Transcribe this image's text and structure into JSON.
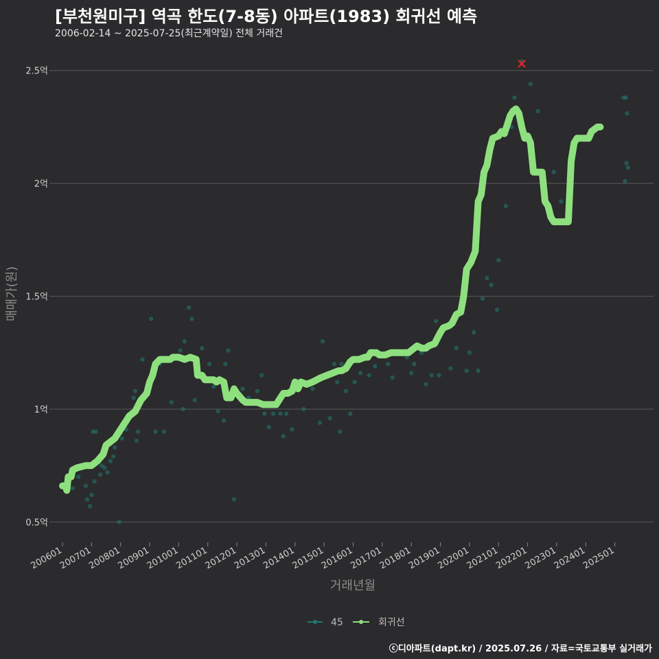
{
  "title": "[부천원미구] 역곡 한도(7-8동) 아파트(1983) 회귀선 예측",
  "subtitle": "2006-02-14 ~ 2025-07-25(최근계약일) 전체 거래건",
  "caption": "ⓒ디아파트(dapt.kr) / 2025.07.26 / 자료=국토교통부 실거래가",
  "colors": {
    "background": "#2b2a2c",
    "scatter": "#1f7a72",
    "line": "#8ee07f",
    "marker": "#d62728",
    "grid": "#5a5a5a"
  },
  "chart_data": {
    "type": "line",
    "xlabel": "거래년월",
    "ylabel": "매매가(원)",
    "xlim": [
      2005.67,
      2026.33
    ],
    "ylim": [
      0.41,
      2.63
    ],
    "x_ticks": [
      2006,
      2007,
      2008,
      2009,
      2010,
      2011,
      2012,
      2013,
      2014,
      2015,
      2016,
      2017,
      2018,
      2019,
      2020,
      2021,
      2022,
      2023,
      2024,
      2025
    ],
    "x_tick_labels": [
      "200601",
      "200701",
      "200801",
      "200901",
      "201001",
      "201101",
      "201201",
      "201301",
      "201401",
      "201501",
      "201601",
      "201701",
      "201801",
      "201901",
      "202001",
      "202101",
      "202201",
      "202301",
      "202401",
      "202501"
    ],
    "y_ticks": [
      0.5,
      1.0,
      1.5,
      2.0,
      2.5
    ],
    "y_tick_labels": [
      "0.5억",
      "1억",
      "1.5억",
      "2억",
      "2.5억"
    ],
    "legend": {
      "position": "bottom",
      "items": [
        "45",
        "회귀선"
      ]
    },
    "series": [
      {
        "name": "45",
        "kind": "scatter",
        "points": [
          [
            2006.15,
            0.66
          ],
          [
            2006.35,
            0.65
          ],
          [
            2006.55,
            0.7
          ],
          [
            2006.8,
            0.66
          ],
          [
            2006.85,
            0.6
          ],
          [
            2006.95,
            0.57
          ],
          [
            2007.0,
            0.62
          ],
          [
            2007.05,
            0.9
          ],
          [
            2007.15,
            0.9
          ],
          [
            2007.1,
            0.68
          ],
          [
            2007.3,
            0.71
          ],
          [
            2007.35,
            0.75
          ],
          [
            2007.45,
            0.74
          ],
          [
            2007.55,
            0.72
          ],
          [
            2007.65,
            0.77
          ],
          [
            2007.75,
            0.79
          ],
          [
            2007.8,
            0.83
          ],
          [
            2007.95,
            0.5
          ],
          [
            2008.05,
            0.87
          ],
          [
            2008.2,
            0.91
          ],
          [
            2008.3,
            0.96
          ],
          [
            2008.45,
            1.05
          ],
          [
            2008.5,
            1.08
          ],
          [
            2008.55,
            0.86
          ],
          [
            2008.6,
            0.9
          ],
          [
            2008.75,
            1.22
          ],
          [
            2009.05,
            1.4
          ],
          [
            2009.2,
            0.9
          ],
          [
            2009.35,
            1.2
          ],
          [
            2009.5,
            0.9
          ],
          [
            2009.75,
            1.03
          ],
          [
            2010.05,
            1.26
          ],
          [
            2010.15,
            1.0
          ],
          [
            2010.2,
            1.3
          ],
          [
            2010.35,
            1.45
          ],
          [
            2010.45,
            1.4
          ],
          [
            2010.55,
            1.04
          ],
          [
            2010.6,
            1.21
          ],
          [
            2010.7,
            1.15
          ],
          [
            2010.8,
            1.27
          ],
          [
            2011.05,
            1.2
          ],
          [
            2011.2,
            1.1
          ],
          [
            2011.35,
            0.99
          ],
          [
            2011.55,
            0.95
          ],
          [
            2011.6,
            1.2
          ],
          [
            2011.7,
            1.26
          ],
          [
            2011.9,
            0.6
          ],
          [
            2012.2,
            1.09
          ],
          [
            2012.4,
            1.05
          ],
          [
            2012.7,
            1.08
          ],
          [
            2012.85,
            1.15
          ],
          [
            2012.95,
            0.98
          ],
          [
            2013.1,
            0.92
          ],
          [
            2013.25,
            0.98
          ],
          [
            2013.4,
            1.02
          ],
          [
            2013.5,
            0.98
          ],
          [
            2013.6,
            0.88
          ],
          [
            2013.7,
            0.98
          ],
          [
            2013.9,
            0.91
          ],
          [
            2014.3,
            1.0
          ],
          [
            2014.6,
            1.09
          ],
          [
            2014.85,
            0.94
          ],
          [
            2014.95,
            1.3
          ],
          [
            2015.2,
            0.96
          ],
          [
            2015.35,
            1.2
          ],
          [
            2015.45,
            1.12
          ],
          [
            2015.55,
            0.9
          ],
          [
            2015.6,
            1.2
          ],
          [
            2015.75,
            1.08
          ],
          [
            2015.9,
            0.98
          ],
          [
            2016.05,
            1.12
          ],
          [
            2016.25,
            1.16
          ],
          [
            2016.4,
            1.23
          ],
          [
            2016.55,
            1.15
          ],
          [
            2016.75,
            1.19
          ],
          [
            2016.9,
            1.25
          ],
          [
            2017.2,
            1.2
          ],
          [
            2017.35,
            1.14
          ],
          [
            2017.55,
            1.25
          ],
          [
            2017.85,
            1.23
          ],
          [
            2018.0,
            1.16
          ],
          [
            2018.1,
            1.2
          ],
          [
            2018.35,
            1.25
          ],
          [
            2018.5,
            1.11
          ],
          [
            2018.7,
            1.15
          ],
          [
            2018.85,
            1.39
          ],
          [
            2018.95,
            1.15
          ],
          [
            2019.35,
            1.18
          ],
          [
            2019.55,
            1.27
          ],
          [
            2019.8,
            1.55
          ],
          [
            2019.9,
            1.17
          ],
          [
            2020.0,
            1.25
          ],
          [
            2020.15,
            1.34
          ],
          [
            2020.3,
            1.17
          ],
          [
            2020.45,
            1.49
          ],
          [
            2020.6,
            1.58
          ],
          [
            2020.75,
            1.55
          ],
          [
            2020.95,
            1.44
          ],
          [
            2021.0,
            1.66
          ],
          [
            2021.25,
            1.9
          ],
          [
            2021.45,
            2.25
          ],
          [
            2021.55,
            2.38
          ],
          [
            2021.8,
            2.54
          ],
          [
            2021.9,
            2.21
          ],
          [
            2022.0,
            2.2
          ],
          [
            2022.1,
            2.44
          ],
          [
            2022.35,
            2.32
          ],
          [
            2022.55,
            2.0
          ],
          [
            2022.7,
            1.9
          ],
          [
            2022.9,
            2.05
          ],
          [
            2023.15,
            1.92
          ],
          [
            2025.3,
            2.38
          ],
          [
            2025.38,
            2.38
          ],
          [
            2025.4,
            2.09
          ],
          [
            2025.42,
            2.31
          ],
          [
            2025.45,
            2.07
          ],
          [
            2025.35,
            2.01
          ]
        ]
      },
      {
        "name": "회귀선",
        "kind": "line",
        "points": [
          [
            2006.0,
            0.66
          ],
          [
            2006.1,
            0.66
          ],
          [
            2006.15,
            0.64
          ],
          [
            2006.2,
            0.7
          ],
          [
            2006.3,
            0.7
          ],
          [
            2006.35,
            0.73
          ],
          [
            2006.5,
            0.74
          ],
          [
            2006.8,
            0.75
          ],
          [
            2007.0,
            0.75
          ],
          [
            2007.2,
            0.77
          ],
          [
            2007.4,
            0.8
          ],
          [
            2007.5,
            0.84
          ],
          [
            2007.6,
            0.85
          ],
          [
            2007.8,
            0.87
          ],
          [
            2008.0,
            0.91
          ],
          [
            2008.2,
            0.95
          ],
          [
            2008.3,
            0.97
          ],
          [
            2008.5,
            0.99
          ],
          [
            2008.7,
            1.04
          ],
          [
            2008.9,
            1.07
          ],
          [
            2009.0,
            1.12
          ],
          [
            2009.1,
            1.15
          ],
          [
            2009.2,
            1.2
          ],
          [
            2009.35,
            1.22
          ],
          [
            2009.5,
            1.22
          ],
          [
            2009.7,
            1.22
          ],
          [
            2009.8,
            1.23
          ],
          [
            2010.0,
            1.23
          ],
          [
            2010.2,
            1.22
          ],
          [
            2010.4,
            1.23
          ],
          [
            2010.6,
            1.22
          ],
          [
            2010.65,
            1.15
          ],
          [
            2010.8,
            1.15
          ],
          [
            2010.9,
            1.13
          ],
          [
            2011.0,
            1.13
          ],
          [
            2011.2,
            1.13
          ],
          [
            2011.3,
            1.12
          ],
          [
            2011.4,
            1.13
          ],
          [
            2011.55,
            1.12
          ],
          [
            2011.65,
            1.05
          ],
          [
            2011.8,
            1.05
          ],
          [
            2011.9,
            1.09
          ],
          [
            2012.0,
            1.07
          ],
          [
            2012.2,
            1.04
          ],
          [
            2012.3,
            1.03
          ],
          [
            2012.5,
            1.03
          ],
          [
            2012.7,
            1.03
          ],
          [
            2012.9,
            1.02
          ],
          [
            2013.1,
            1.02
          ],
          [
            2013.2,
            1.02
          ],
          [
            2013.35,
            1.02
          ],
          [
            2013.5,
            1.05
          ],
          [
            2013.6,
            1.07
          ],
          [
            2013.75,
            1.07
          ],
          [
            2013.9,
            1.08
          ],
          [
            2014.0,
            1.12
          ],
          [
            2014.1,
            1.09
          ],
          [
            2014.2,
            1.12
          ],
          [
            2014.4,
            1.11
          ],
          [
            2014.6,
            1.12
          ],
          [
            2014.75,
            1.13
          ],
          [
            2014.9,
            1.14
          ],
          [
            2015.1,
            1.15
          ],
          [
            2015.3,
            1.16
          ],
          [
            2015.5,
            1.17
          ],
          [
            2015.6,
            1.17
          ],
          [
            2015.75,
            1.18
          ],
          [
            2015.9,
            1.21
          ],
          [
            2016.0,
            1.22
          ],
          [
            2016.2,
            1.22
          ],
          [
            2016.4,
            1.23
          ],
          [
            2016.5,
            1.23
          ],
          [
            2016.6,
            1.25
          ],
          [
            2016.8,
            1.25
          ],
          [
            2016.9,
            1.24
          ],
          [
            2017.1,
            1.24
          ],
          [
            2017.3,
            1.25
          ],
          [
            2017.5,
            1.25
          ],
          [
            2017.7,
            1.25
          ],
          [
            2017.9,
            1.25
          ],
          [
            2018.0,
            1.26
          ],
          [
            2018.1,
            1.27
          ],
          [
            2018.2,
            1.28
          ],
          [
            2018.35,
            1.27
          ],
          [
            2018.5,
            1.27
          ],
          [
            2018.6,
            1.28
          ],
          [
            2018.8,
            1.29
          ],
          [
            2019.0,
            1.34
          ],
          [
            2019.1,
            1.36
          ],
          [
            2019.3,
            1.37
          ],
          [
            2019.4,
            1.38
          ],
          [
            2019.55,
            1.42
          ],
          [
            2019.7,
            1.43
          ],
          [
            2019.8,
            1.5
          ],
          [
            2019.9,
            1.62
          ],
          [
            2020.05,
            1.65
          ],
          [
            2020.2,
            1.7
          ],
          [
            2020.3,
            1.92
          ],
          [
            2020.4,
            1.95
          ],
          [
            2020.5,
            2.05
          ],
          [
            2020.6,
            2.08
          ],
          [
            2020.7,
            2.15
          ],
          [
            2020.8,
            2.2
          ],
          [
            2021.0,
            2.21
          ],
          [
            2021.1,
            2.23
          ],
          [
            2021.2,
            2.22
          ],
          [
            2021.3,
            2.26
          ],
          [
            2021.4,
            2.3
          ],
          [
            2021.5,
            2.32
          ],
          [
            2021.6,
            2.33
          ],
          [
            2021.7,
            2.31
          ],
          [
            2021.8,
            2.25
          ],
          [
            2021.9,
            2.2
          ],
          [
            2022.0,
            2.21
          ],
          [
            2022.1,
            2.18
          ],
          [
            2022.2,
            2.05
          ],
          [
            2022.5,
            2.05
          ],
          [
            2022.6,
            1.92
          ],
          [
            2022.7,
            1.9
          ],
          [
            2022.8,
            1.85
          ],
          [
            2022.9,
            1.83
          ],
          [
            2023.0,
            1.83
          ],
          [
            2023.4,
            1.83
          ],
          [
            2023.5,
            2.1
          ],
          [
            2023.6,
            2.18
          ],
          [
            2023.7,
            2.2
          ],
          [
            2023.9,
            2.2
          ],
          [
            2024.1,
            2.2
          ],
          [
            2024.2,
            2.23
          ],
          [
            2024.4,
            2.25
          ],
          [
            2024.5,
            2.25
          ]
        ]
      }
    ],
    "annotations": [
      {
        "type": "x-marker",
        "x": 2021.8,
        "y": 2.53
      }
    ]
  }
}
